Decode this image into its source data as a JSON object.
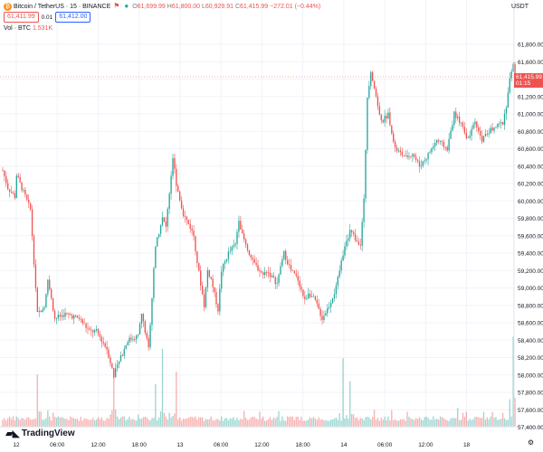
{
  "legend": {
    "symbol": "Bitcoin / TetherUS · 15 · BINANCE",
    "o_label": "O",
    "o": "61,699.99",
    "h_label": "H",
    "h": "61,800.00",
    "l_label": "L",
    "l": "60,929.91",
    "c_label": "C",
    "c": "61,415.99",
    "change": "−272.01 (−0.44%)"
  },
  "trade": {
    "sell": "61,411.99",
    "spread": "0.01",
    "buy": "61,412.00"
  },
  "volume": {
    "label": "Vol · BTC",
    "value": "1.531K"
  },
  "axis": {
    "currency": "USDT"
  },
  "current": {
    "price": "61,415.99",
    "countdown": "01:15"
  },
  "logo": {
    "text": "TradingView"
  },
  "colors": {
    "up": "#26a69a",
    "down": "#ef5350",
    "grid": "#f0f3fa",
    "text": "#131722"
  },
  "icons": {
    "symbol": "bitcoin-icon",
    "flag": "flag-icon",
    "status": "dot-icon",
    "settings": "gear-icon"
  },
  "chart_data": {
    "type": "candlestick",
    "ylabel": "USDT",
    "ylim": [
      57300,
      62000
    ],
    "y_ticks": [
      "61,800.00",
      "61,600.00",
      "61,400.00",
      "61,200.00",
      "61,000.00",
      "60,800.00",
      "60,600.00",
      "60,400.00",
      "60,200.00",
      "60,000.00",
      "59,800.00",
      "59,600.00",
      "59,400.00",
      "59,200.00",
      "59,000.00",
      "58,800.00",
      "58,600.00",
      "58,400.00",
      "58,200.00",
      "58,000.00",
      "57,800.00",
      "57,600.00",
      "57,400.00"
    ],
    "x_ticks": [
      "12",
      "06:00",
      "12:00",
      "18:00",
      "13",
      "06:00",
      "12:00",
      "18:00",
      "14",
      "06:00",
      "12:00",
      "18"
    ],
    "grid": true,
    "path": [
      [
        0,
        60350
      ],
      [
        3,
        60150
      ],
      [
        7,
        60050
      ],
      [
        8,
        60300
      ],
      [
        12,
        60100
      ],
      [
        16,
        59900
      ],
      [
        20,
        58700
      ],
      [
        24,
        58800
      ],
      [
        26,
        59100
      ],
      [
        30,
        58650
      ],
      [
        36,
        58700
      ],
      [
        44,
        58650
      ],
      [
        50,
        58500
      ],
      [
        54,
        58500
      ],
      [
        60,
        58300
      ],
      [
        64,
        58000
      ],
      [
        72,
        58400
      ],
      [
        78,
        58450
      ],
      [
        80,
        58700
      ],
      [
        84,
        58300
      ],
      [
        88,
        59500
      ],
      [
        92,
        59800
      ],
      [
        94,
        59700
      ],
      [
        98,
        60500
      ],
      [
        100,
        60200
      ],
      [
        104,
        59850
      ],
      [
        108,
        59700
      ],
      [
        110,
        59600
      ],
      [
        112,
        59300
      ],
      [
        116,
        58800
      ],
      [
        118,
        59200
      ],
      [
        120,
        59100
      ],
      [
        124,
        58750
      ],
      [
        126,
        59200
      ],
      [
        130,
        59400
      ],
      [
        134,
        59500
      ],
      [
        136,
        59800
      ],
      [
        138,
        59600
      ],
      [
        142,
        59400
      ],
      [
        144,
        59300
      ],
      [
        150,
        59150
      ],
      [
        152,
        59200
      ],
      [
        158,
        59050
      ],
      [
        162,
        59400
      ],
      [
        166,
        59200
      ],
      [
        170,
        59100
      ],
      [
        174,
        58850
      ],
      [
        176,
        58950
      ],
      [
        180,
        58850
      ],
      [
        184,
        58650
      ],
      [
        188,
        58800
      ],
      [
        192,
        59000
      ],
      [
        196,
        59400
      ],
      [
        200,
        59650
      ],
      [
        206,
        59500
      ],
      [
        208,
        60000
      ],
      [
        210,
        61200
      ],
      [
        212,
        61500
      ],
      [
        214,
        61300
      ],
      [
        218,
        60900
      ],
      [
        222,
        61000
      ],
      [
        226,
        60600
      ],
      [
        232,
        60500
      ],
      [
        236,
        60550
      ],
      [
        240,
        60400
      ],
      [
        244,
        60500
      ],
      [
        250,
        60700
      ],
      [
        256,
        60600
      ],
      [
        260,
        61000
      ],
      [
        264,
        60900
      ],
      [
        268,
        60700
      ],
      [
        272,
        60900
      ],
      [
        276,
        60700
      ],
      [
        280,
        60800
      ],
      [
        284,
        60850
      ],
      [
        288,
        60900
      ],
      [
        290,
        61100
      ],
      [
        292,
        61400
      ],
      [
        294,
        61550
      ],
      [
        295,
        61416
      ]
    ],
    "volume_spikes": [
      [
        20,
        0.55
      ],
      [
        64,
        0.62
      ],
      [
        88,
        0.45
      ],
      [
        92,
        0.82
      ],
      [
        100,
        0.58
      ],
      [
        196,
        0.72
      ],
      [
        200,
        0.48
      ],
      [
        294,
        0.95
      ]
    ],
    "volume_base": 0.06
  }
}
